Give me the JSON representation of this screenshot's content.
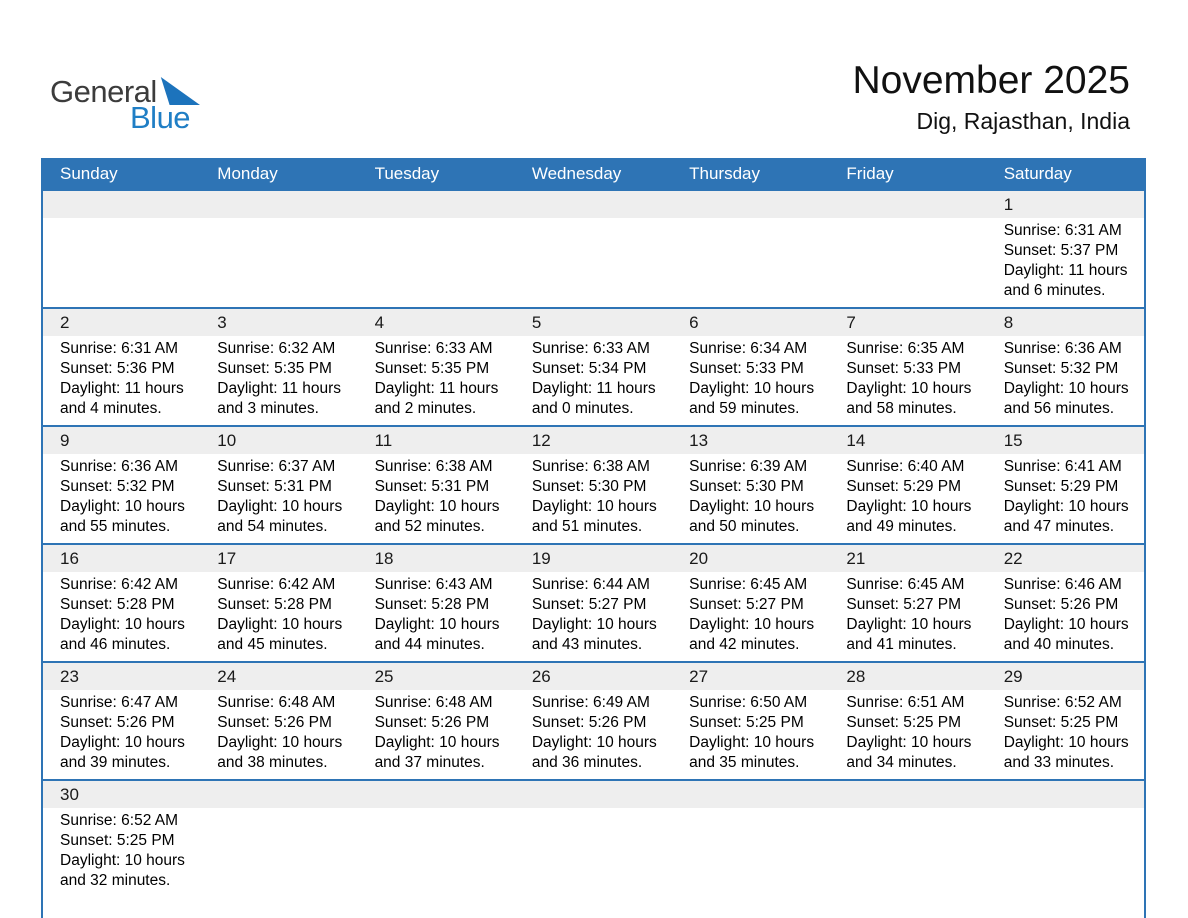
{
  "logo": {
    "word1": "General",
    "word2": "Blue",
    "triangle_icon": "blue-sail-triangle"
  },
  "header": {
    "title": "November 2025",
    "subtitle": "Dig, Rajasthan, India"
  },
  "colors": {
    "header_bg": "#2E74B5",
    "row_line": "#2E74B5",
    "day_strip_bg": "#EEEEEE",
    "logo_dark": "#3C3C3C",
    "logo_blue": "#1F7EC5",
    "triangle": "#1C73BC",
    "weekday_text": "#FFFFFF"
  },
  "weekdays": [
    "Sunday",
    "Monday",
    "Tuesday",
    "Wednesday",
    "Thursday",
    "Friday",
    "Saturday"
  ],
  "weeks": [
    {
      "days": [
        null,
        null,
        null,
        null,
        null,
        null,
        {
          "num": "1",
          "lines": [
            "Sunrise: 6:31 AM",
            "Sunset: 5:37 PM",
            "Daylight: 11 hours",
            "and 6 minutes."
          ]
        }
      ]
    },
    {
      "days": [
        {
          "num": "2",
          "lines": [
            "Sunrise: 6:31 AM",
            "Sunset: 5:36 PM",
            "Daylight: 11 hours",
            "and 4 minutes."
          ]
        },
        {
          "num": "3",
          "lines": [
            "Sunrise: 6:32 AM",
            "Sunset: 5:35 PM",
            "Daylight: 11 hours",
            "and 3 minutes."
          ]
        },
        {
          "num": "4",
          "lines": [
            "Sunrise: 6:33 AM",
            "Sunset: 5:35 PM",
            "Daylight: 11 hours",
            "and 2 minutes."
          ]
        },
        {
          "num": "5",
          "lines": [
            "Sunrise: 6:33 AM",
            "Sunset: 5:34 PM",
            "Daylight: 11 hours",
            "and 0 minutes."
          ]
        },
        {
          "num": "6",
          "lines": [
            "Sunrise: 6:34 AM",
            "Sunset: 5:33 PM",
            "Daylight: 10 hours",
            "and 59 minutes."
          ]
        },
        {
          "num": "7",
          "lines": [
            "Sunrise: 6:35 AM",
            "Sunset: 5:33 PM",
            "Daylight: 10 hours",
            "and 58 minutes."
          ]
        },
        {
          "num": "8",
          "lines": [
            "Sunrise: 6:36 AM",
            "Sunset: 5:32 PM",
            "Daylight: 10 hours",
            "and 56 minutes."
          ]
        }
      ]
    },
    {
      "days": [
        {
          "num": "9",
          "lines": [
            "Sunrise: 6:36 AM",
            "Sunset: 5:32 PM",
            "Daylight: 10 hours",
            "and 55 minutes."
          ]
        },
        {
          "num": "10",
          "lines": [
            "Sunrise: 6:37 AM",
            "Sunset: 5:31 PM",
            "Daylight: 10 hours",
            "and 54 minutes."
          ]
        },
        {
          "num": "11",
          "lines": [
            "Sunrise: 6:38 AM",
            "Sunset: 5:31 PM",
            "Daylight: 10 hours",
            "and 52 minutes."
          ]
        },
        {
          "num": "12",
          "lines": [
            "Sunrise: 6:38 AM",
            "Sunset: 5:30 PM",
            "Daylight: 10 hours",
            "and 51 minutes."
          ]
        },
        {
          "num": "13",
          "lines": [
            "Sunrise: 6:39 AM",
            "Sunset: 5:30 PM",
            "Daylight: 10 hours",
            "and 50 minutes."
          ]
        },
        {
          "num": "14",
          "lines": [
            "Sunrise: 6:40 AM",
            "Sunset: 5:29 PM",
            "Daylight: 10 hours",
            "and 49 minutes."
          ]
        },
        {
          "num": "15",
          "lines": [
            "Sunrise: 6:41 AM",
            "Sunset: 5:29 PM",
            "Daylight: 10 hours",
            "and 47 minutes."
          ]
        }
      ]
    },
    {
      "days": [
        {
          "num": "16",
          "lines": [
            "Sunrise: 6:42 AM",
            "Sunset: 5:28 PM",
            "Daylight: 10 hours",
            "and 46 minutes."
          ]
        },
        {
          "num": "17",
          "lines": [
            "Sunrise: 6:42 AM",
            "Sunset: 5:28 PM",
            "Daylight: 10 hours",
            "and 45 minutes."
          ]
        },
        {
          "num": "18",
          "lines": [
            "Sunrise: 6:43 AM",
            "Sunset: 5:28 PM",
            "Daylight: 10 hours",
            "and 44 minutes."
          ]
        },
        {
          "num": "19",
          "lines": [
            "Sunrise: 6:44 AM",
            "Sunset: 5:27 PM",
            "Daylight: 10 hours",
            "and 43 minutes."
          ]
        },
        {
          "num": "20",
          "lines": [
            "Sunrise: 6:45 AM",
            "Sunset: 5:27 PM",
            "Daylight: 10 hours",
            "and 42 minutes."
          ]
        },
        {
          "num": "21",
          "lines": [
            "Sunrise: 6:45 AM",
            "Sunset: 5:27 PM",
            "Daylight: 10 hours",
            "and 41 minutes."
          ]
        },
        {
          "num": "22",
          "lines": [
            "Sunrise: 6:46 AM",
            "Sunset: 5:26 PM",
            "Daylight: 10 hours",
            "and 40 minutes."
          ]
        }
      ]
    },
    {
      "days": [
        {
          "num": "23",
          "lines": [
            "Sunrise: 6:47 AM",
            "Sunset: 5:26 PM",
            "Daylight: 10 hours",
            "and 39 minutes."
          ]
        },
        {
          "num": "24",
          "lines": [
            "Sunrise: 6:48 AM",
            "Sunset: 5:26 PM",
            "Daylight: 10 hours",
            "and 38 minutes."
          ]
        },
        {
          "num": "25",
          "lines": [
            "Sunrise: 6:48 AM",
            "Sunset: 5:26 PM",
            "Daylight: 10 hours",
            "and 37 minutes."
          ]
        },
        {
          "num": "26",
          "lines": [
            "Sunrise: 6:49 AM",
            "Sunset: 5:26 PM",
            "Daylight: 10 hours",
            "and 36 minutes."
          ]
        },
        {
          "num": "27",
          "lines": [
            "Sunrise: 6:50 AM",
            "Sunset: 5:25 PM",
            "Daylight: 10 hours",
            "and 35 minutes."
          ]
        },
        {
          "num": "28",
          "lines": [
            "Sunrise: 6:51 AM",
            "Sunset: 5:25 PM",
            "Daylight: 10 hours",
            "and 34 minutes."
          ]
        },
        {
          "num": "29",
          "lines": [
            "Sunrise: 6:52 AM",
            "Sunset: 5:25 PM",
            "Daylight: 10 hours",
            "and 33 minutes."
          ]
        }
      ]
    },
    {
      "days": [
        {
          "num": "30",
          "lines": [
            "Sunrise: 6:52 AM",
            "Sunset: 5:25 PM",
            "Daylight: 10 hours",
            "and 32 minutes."
          ]
        },
        null,
        null,
        null,
        null,
        null,
        null
      ]
    }
  ]
}
